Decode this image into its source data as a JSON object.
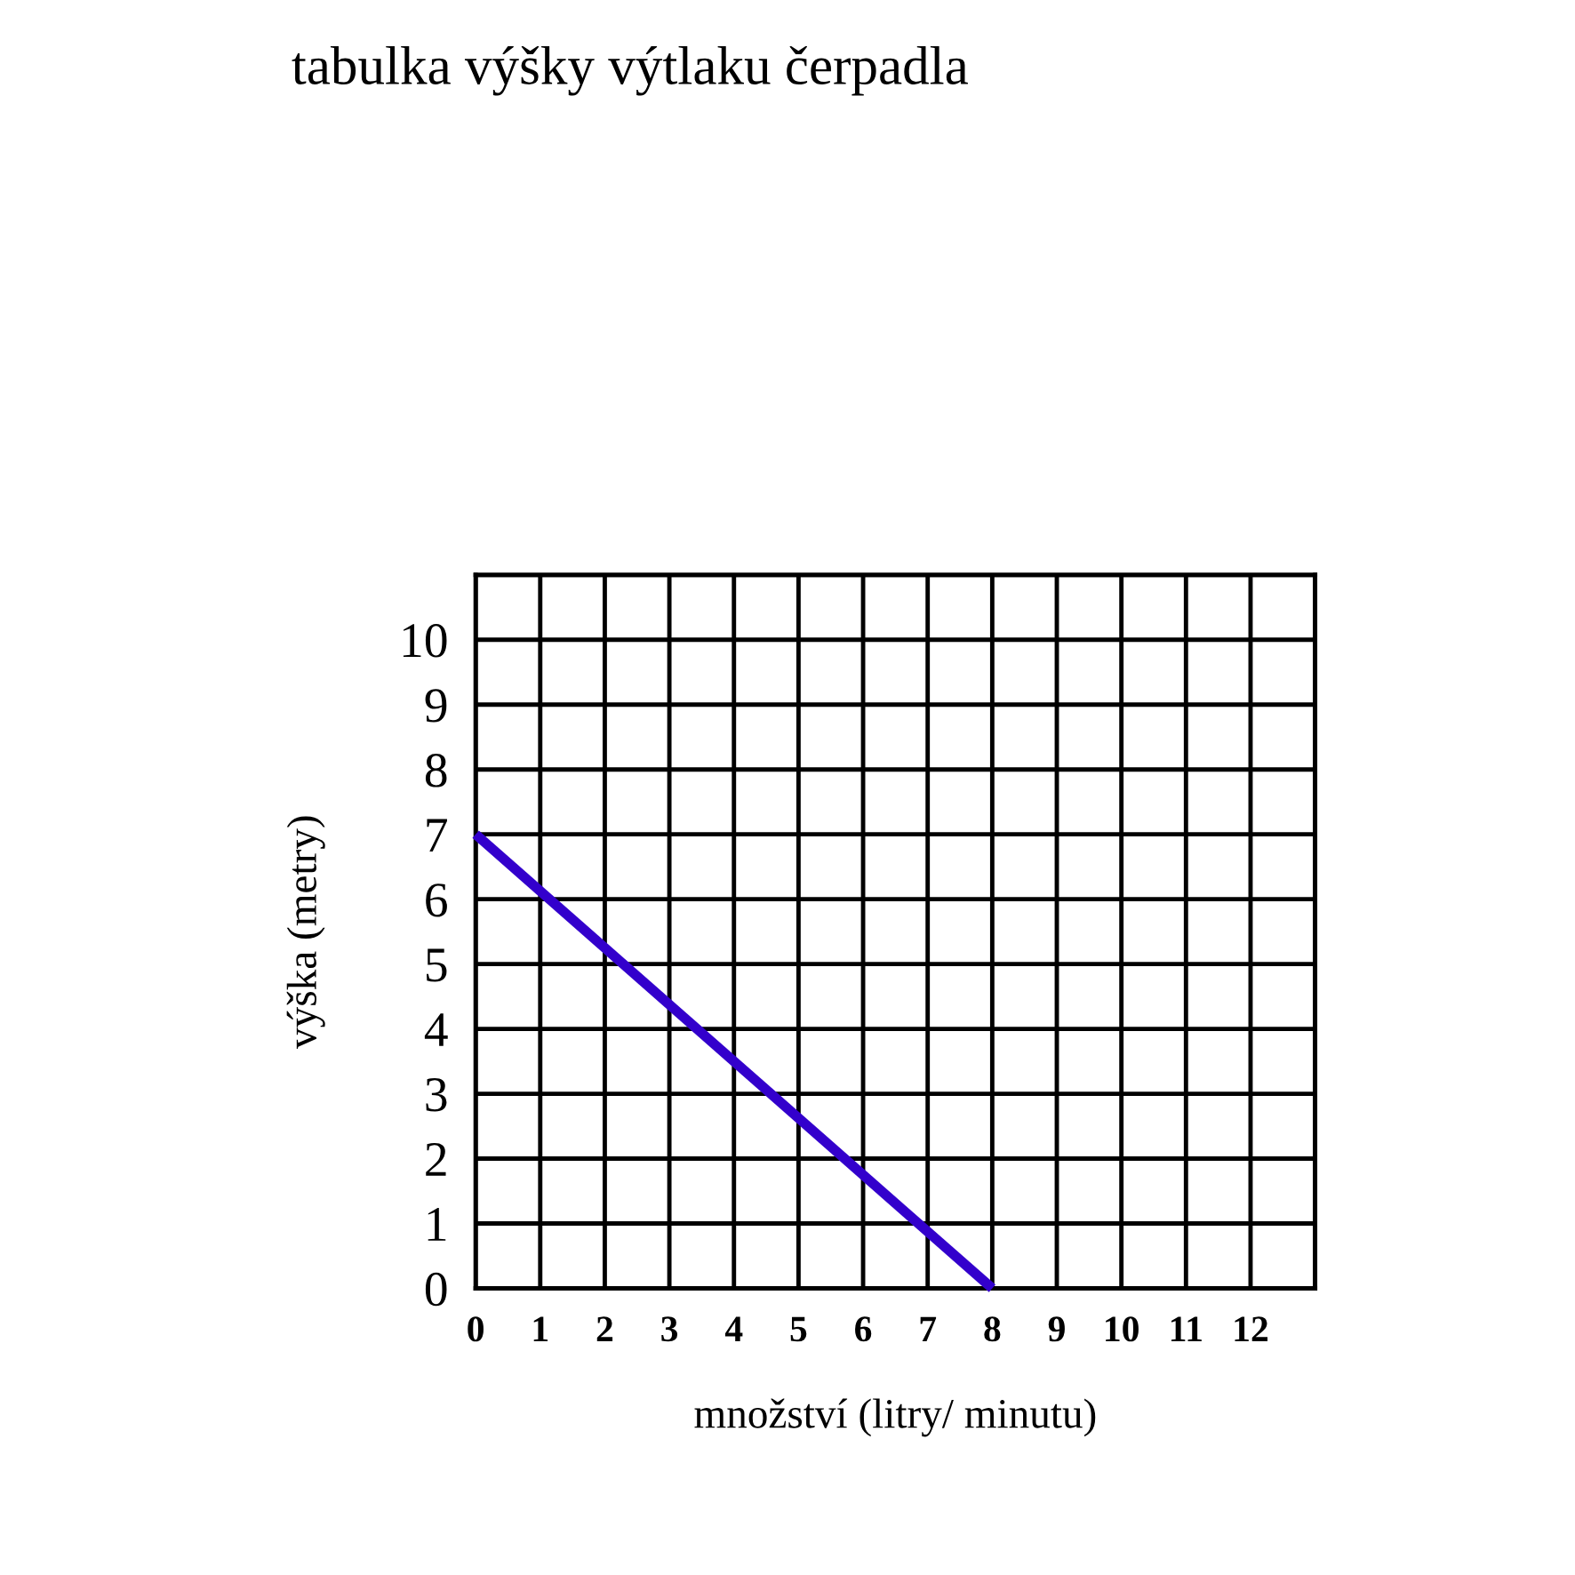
{
  "chart_data": {
    "type": "line",
    "title": "tabulka výšky výtlaku čerpadla",
    "xlabel": "množství (litry/ minutu)",
    "ylabel": "výška (metry)",
    "x": [
      0,
      8
    ],
    "series": [
      {
        "color": "#3300cc",
        "values": [
          7,
          0
        ]
      }
    ],
    "xlim": [
      0,
      13
    ],
    "xticks": [
      0,
      1,
      2,
      3,
      4,
      5,
      6,
      7,
      8,
      9,
      10,
      11,
      12
    ],
    "ylim": [
      0,
      11
    ],
    "yticks": [
      0,
      1,
      2,
      3,
      4,
      5,
      6,
      7,
      8,
      9,
      10
    ],
    "grid": true,
    "marker": "none",
    "line_style": "solid",
    "legend": false
  }
}
